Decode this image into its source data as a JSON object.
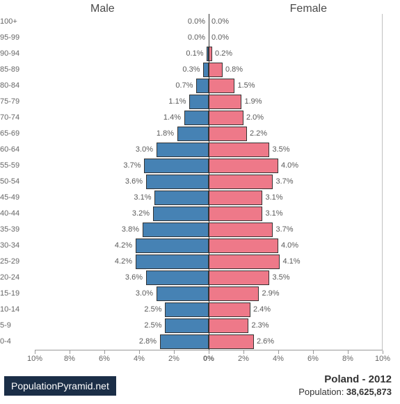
{
  "chart": {
    "type": "population-pyramid",
    "male_label": "Male",
    "female_label": "Female",
    "male_color": "#4682b4",
    "female_color": "#ee7989",
    "bar_border_color": "#333333",
    "background_color": "#ffffff",
    "axis_color": "#999999",
    "text_color": "#5a5a5a",
    "label_fontsize": 11,
    "header_fontsize": 16,
    "x_max_percent": 10,
    "x_ticks": [
      {
        "pos": -10,
        "label": "10%"
      },
      {
        "pos": -8,
        "label": "8%"
      },
      {
        "pos": -6,
        "label": "6%"
      },
      {
        "pos": -4,
        "label": "4%"
      },
      {
        "pos": -2,
        "label": "2%"
      },
      {
        "pos": 0,
        "label": "0%"
      },
      {
        "pos": 2,
        "label": "2%"
      },
      {
        "pos": 4,
        "label": "4%"
      },
      {
        "pos": 6,
        "label": "6%"
      },
      {
        "pos": 8,
        "label": "8%"
      },
      {
        "pos": 10,
        "label": "10%"
      }
    ],
    "age_groups": [
      {
        "label": "100+",
        "male": 0.0,
        "female": 0.0
      },
      {
        "label": "95-99",
        "male": 0.0,
        "female": 0.0
      },
      {
        "label": "90-94",
        "male": 0.1,
        "female": 0.2
      },
      {
        "label": "85-89",
        "male": 0.3,
        "female": 0.8
      },
      {
        "label": "80-84",
        "male": 0.7,
        "female": 1.5
      },
      {
        "label": "75-79",
        "male": 1.1,
        "female": 1.9
      },
      {
        "label": "70-74",
        "male": 1.4,
        "female": 2.0
      },
      {
        "label": "65-69",
        "male": 1.8,
        "female": 2.2
      },
      {
        "label": "60-64",
        "male": 3.0,
        "female": 3.5
      },
      {
        "label": "55-59",
        "male": 3.7,
        "female": 4.0
      },
      {
        "label": "50-54",
        "male": 3.6,
        "female": 3.7
      },
      {
        "label": "45-49",
        "male": 3.1,
        "female": 3.1
      },
      {
        "label": "40-44",
        "male": 3.2,
        "female": 3.1
      },
      {
        "label": "35-39",
        "male": 3.8,
        "female": 3.7
      },
      {
        "label": "30-34",
        "male": 4.2,
        "female": 4.0
      },
      {
        "label": "25-29",
        "male": 4.2,
        "female": 4.1
      },
      {
        "label": "20-24",
        "male": 3.6,
        "female": 3.5
      },
      {
        "label": "15-19",
        "male": 3.0,
        "female": 2.9
      },
      {
        "label": "10-14",
        "male": 2.5,
        "female": 2.4
      },
      {
        "label": "5-9",
        "male": 2.5,
        "female": 2.3
      },
      {
        "label": "0-4",
        "male": 2.8,
        "female": 2.6
      }
    ]
  },
  "footer": {
    "brand": "PopulationPyramid.net",
    "country_year": "Poland - 2012",
    "population_label": "Population: ",
    "population_value": "38,625,873"
  }
}
